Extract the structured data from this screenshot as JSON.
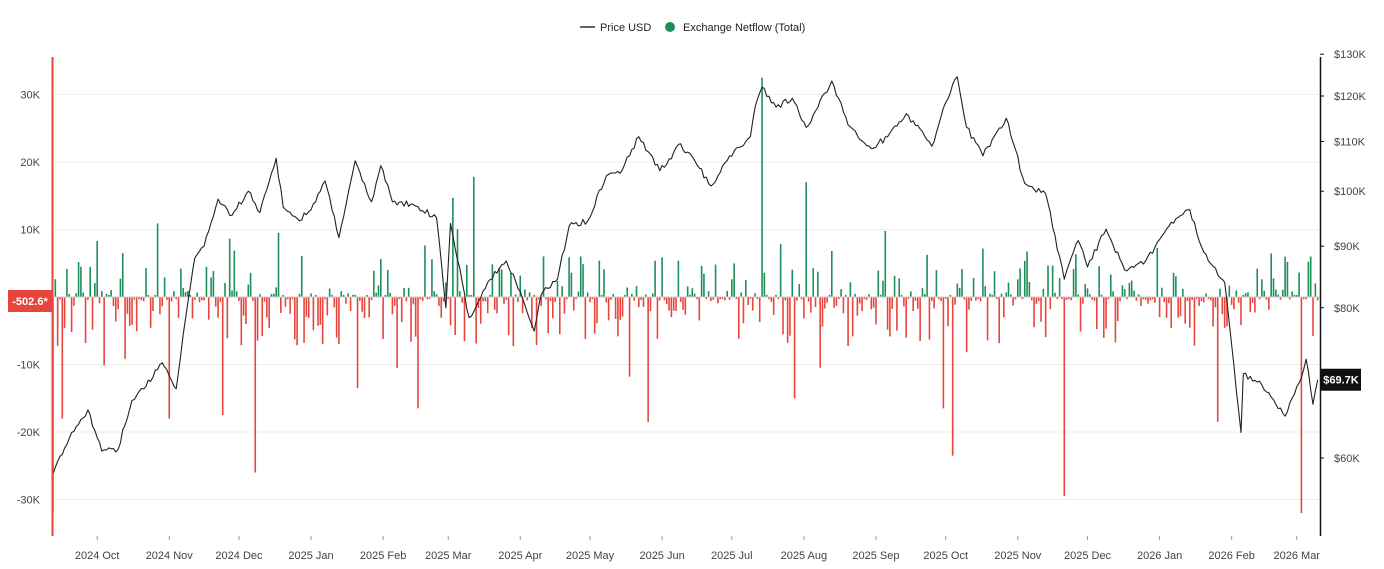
{
  "chart_data": {
    "type": "bar+line",
    "title": "",
    "legend": {
      "position": "top-center",
      "items": [
        {
          "label": "Price USD",
          "color": "#222222",
          "marker": "line"
        },
        {
          "label": "Exchange Netflow (Total)",
          "color": "#1e8f5a",
          "marker": "dot"
        }
      ]
    },
    "x_ticks": [
      "2024 Oct",
      "2024 Nov",
      "2024 Dec",
      "2025 Jan",
      "2025 Feb",
      "2025 Mar",
      "2025 Apr",
      "2025 May",
      "2025 Jun",
      "2025 Jul",
      "2025 Aug",
      "2025 Sep",
      "2025 Oct",
      "2025 Nov",
      "2025 Dec",
      "2026 Jan",
      "2026 Feb",
      "2026 Mar"
    ],
    "y_left": {
      "ticks": [
        "30K",
        "20K",
        "10K",
        "-10K",
        "-20K",
        "-30K"
      ],
      "tick_values": [
        30000,
        20000,
        10000,
        -10000,
        -20000,
        -30000
      ],
      "range": [
        -35500,
        35500
      ]
    },
    "y_right": {
      "ticks": [
        "$130K",
        "$120K",
        "$110K",
        "$100K",
        "$90K",
        "$80K",
        "$60K"
      ],
      "tick_values": [
        130000,
        120000,
        110000,
        100000,
        90000,
        80000,
        60000
      ],
      "scale": "log",
      "range": [
        49000,
        130000
      ]
    },
    "current_netflow_label": "-502.6*",
    "current_price_label": "$69.7K",
    "colors": {
      "inflow": "#1e8f5a",
      "outflow": "#e8453c",
      "price": "#222222",
      "axis_left": "#e8453c",
      "axis_right": "#111111",
      "grid": "#efefef"
    },
    "price_series": [
      {
        "date": "2024-09-12",
        "price": 58200
      },
      {
        "date": "2024-09-20",
        "price": 63000
      },
      {
        "date": "2024-09-27",
        "price": 65800
      },
      {
        "date": "2024-10-03",
        "price": 60800
      },
      {
        "date": "2024-10-10",
        "price": 61000
      },
      {
        "date": "2024-10-16",
        "price": 67000
      },
      {
        "date": "2024-10-21",
        "price": 68500
      },
      {
        "date": "2024-10-29",
        "price": 72000
      },
      {
        "date": "2024-11-04",
        "price": 68500
      },
      {
        "date": "2024-11-07",
        "price": 76000
      },
      {
        "date": "2024-11-12",
        "price": 88000
      },
      {
        "date": "2024-11-16",
        "price": 90000
      },
      {
        "date": "2024-11-22",
        "price": 98500
      },
      {
        "date": "2024-11-28",
        "price": 95500
      },
      {
        "date": "2024-12-05",
        "price": 100000
      },
      {
        "date": "2024-12-10",
        "price": 96000
      },
      {
        "date": "2024-12-17",
        "price": 106500
      },
      {
        "date": "2024-12-20",
        "price": 97000
      },
      {
        "date": "2024-12-27",
        "price": 94500
      },
      {
        "date": "2025-01-03",
        "price": 98000
      },
      {
        "date": "2025-01-07",
        "price": 102000
      },
      {
        "date": "2025-01-13",
        "price": 91500
      },
      {
        "date": "2025-01-20",
        "price": 106000
      },
      {
        "date": "2025-01-27",
        "price": 98000
      },
      {
        "date": "2025-01-31",
        "price": 105000
      },
      {
        "date": "2025-02-05",
        "price": 98000
      },
      {
        "date": "2025-02-14",
        "price": 97500
      },
      {
        "date": "2025-02-24",
        "price": 95000
      },
      {
        "date": "2025-02-28",
        "price": 80000
      },
      {
        "date": "2025-03-02",
        "price": 94000
      },
      {
        "date": "2025-03-10",
        "price": 78500
      },
      {
        "date": "2025-03-18",
        "price": 84000
      },
      {
        "date": "2025-03-26",
        "price": 87500
      },
      {
        "date": "2025-04-01",
        "price": 82500
      },
      {
        "date": "2025-04-07",
        "price": 76500
      },
      {
        "date": "2025-04-10",
        "price": 82000
      },
      {
        "date": "2025-04-17",
        "price": 84500
      },
      {
        "date": "2025-04-22",
        "price": 93500
      },
      {
        "date": "2025-04-30",
        "price": 94500
      },
      {
        "date": "2025-05-08",
        "price": 103000
      },
      {
        "date": "2025-05-14",
        "price": 103500
      },
      {
        "date": "2025-05-22",
        "price": 111000
      },
      {
        "date": "2025-05-31",
        "price": 104000
      },
      {
        "date": "2025-06-09",
        "price": 109500
      },
      {
        "date": "2025-06-17",
        "price": 104500
      },
      {
        "date": "2025-06-22",
        "price": 101000
      },
      {
        "date": "2025-06-30",
        "price": 107000
      },
      {
        "date": "2025-07-09",
        "price": 111000
      },
      {
        "date": "2025-07-11",
        "price": 117500
      },
      {
        "date": "2025-07-14",
        "price": 122000
      },
      {
        "date": "2025-07-20",
        "price": 117500
      },
      {
        "date": "2025-07-27",
        "price": 119500
      },
      {
        "date": "2025-08-02",
        "price": 113000
      },
      {
        "date": "2025-08-13",
        "price": 123500
      },
      {
        "date": "2025-08-20",
        "price": 113500
      },
      {
        "date": "2025-08-30",
        "price": 108500
      },
      {
        "date": "2025-09-06",
        "price": 111000
      },
      {
        "date": "2025-09-14",
        "price": 116000
      },
      {
        "date": "2025-09-25",
        "price": 109000
      },
      {
        "date": "2025-10-01",
        "price": 118500
      },
      {
        "date": "2025-10-06",
        "price": 124500
      },
      {
        "date": "2025-10-10",
        "price": 113000
      },
      {
        "date": "2025-10-17",
        "price": 107000
      },
      {
        "date": "2025-10-27",
        "price": 115000
      },
      {
        "date": "2025-11-04",
        "price": 101500
      },
      {
        "date": "2025-11-13",
        "price": 99500
      },
      {
        "date": "2025-11-21",
        "price": 84500
      },
      {
        "date": "2025-11-27",
        "price": 91000
      },
      {
        "date": "2025-12-01",
        "price": 86500
      },
      {
        "date": "2025-12-09",
        "price": 93000
      },
      {
        "date": "2025-12-17",
        "price": 86000
      },
      {
        "date": "2025-12-26",
        "price": 87500
      },
      {
        "date": "2026-01-05",
        "price": 93500
      },
      {
        "date": "2026-01-14",
        "price": 96500
      },
      {
        "date": "2026-01-20",
        "price": 89000
      },
      {
        "date": "2026-01-29",
        "price": 84000
      },
      {
        "date": "2026-02-05",
        "price": 63000
      },
      {
        "date": "2026-02-06",
        "price": 70500
      },
      {
        "date": "2026-02-14",
        "price": 69000
      },
      {
        "date": "2026-02-24",
        "price": 65000
      },
      {
        "date": "2026-03-03",
        "price": 70000
      },
      {
        "date": "2026-03-05",
        "price": 72500
      },
      {
        "date": "2026-03-08",
        "price": 66500
      },
      {
        "date": "2026-03-10",
        "price": 69700
      }
    ],
    "netflow_highlights": [
      {
        "date": "2024-09-12",
        "value": -32000
      },
      {
        "date": "2024-09-16",
        "value": -18000
      },
      {
        "date": "2024-10-01",
        "value": 8300
      },
      {
        "date": "2024-10-27",
        "value": 10900
      },
      {
        "date": "2024-11-01",
        "value": -18000
      },
      {
        "date": "2024-11-24",
        "value": -17500
      },
      {
        "date": "2024-12-08",
        "value": -26000
      },
      {
        "date": "2024-12-18",
        "value": 9500
      },
      {
        "date": "2025-01-21",
        "value": -13500
      },
      {
        "date": "2025-02-07",
        "value": -10500
      },
      {
        "date": "2025-02-16",
        "value": -16500
      },
      {
        "date": "2025-03-03",
        "value": 14700
      },
      {
        "date": "2025-03-12",
        "value": 17800
      },
      {
        "date": "2025-05-18",
        "value": -11800
      },
      {
        "date": "2025-05-26",
        "value": -18500
      },
      {
        "date": "2025-07-14",
        "value": 32500
      },
      {
        "date": "2025-07-28",
        "value": -15000
      },
      {
        "date": "2025-08-02",
        "value": 17000
      },
      {
        "date": "2025-09-30",
        "value": -16500
      },
      {
        "date": "2025-10-04",
        "value": -23500
      },
      {
        "date": "2025-11-21",
        "value": -29500
      },
      {
        "date": "2026-01-26",
        "value": -18500
      },
      {
        "date": "2026-03-03",
        "value": -32000
      },
      {
        "date": "2026-03-10",
        "value": -502.6
      }
    ]
  }
}
